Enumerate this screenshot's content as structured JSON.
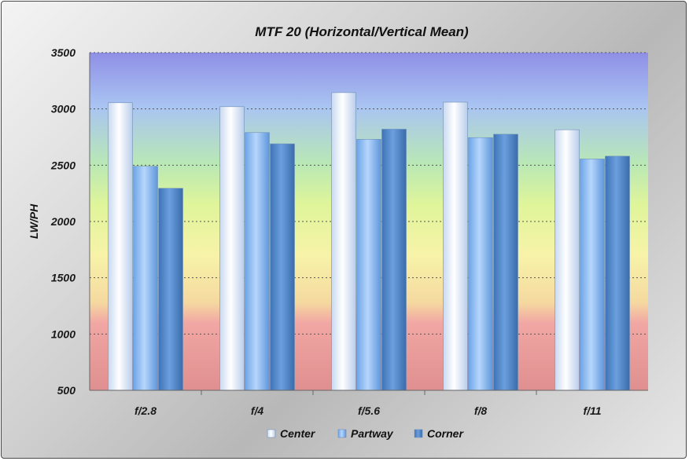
{
  "chart_data": {
    "type": "bar",
    "title": "MTF 20 (Horizontal/Vertical Mean)",
    "xlabel": "",
    "ylabel": "LW/PH",
    "ylim": [
      500,
      3500
    ],
    "yticks": [
      500,
      1000,
      1500,
      2000,
      2500,
      3000,
      3500
    ],
    "categories": [
      "f/2.8",
      "f/4",
      "f/5.6",
      "f/8",
      "f/11"
    ],
    "series": [
      {
        "name": "Center",
        "values": [
          3055,
          3020,
          3145,
          3060,
          2815
        ],
        "color": "#dfe9f8"
      },
      {
        "name": "Partway",
        "values": [
          2490,
          2790,
          2730,
          2745,
          2555
        ],
        "color": "#8fbdf2"
      },
      {
        "name": "Corner",
        "values": [
          2295,
          2690,
          2820,
          2775,
          2580
        ],
        "color": "#4f86c7"
      }
    ],
    "grid": true,
    "legend": "bottom"
  }
}
